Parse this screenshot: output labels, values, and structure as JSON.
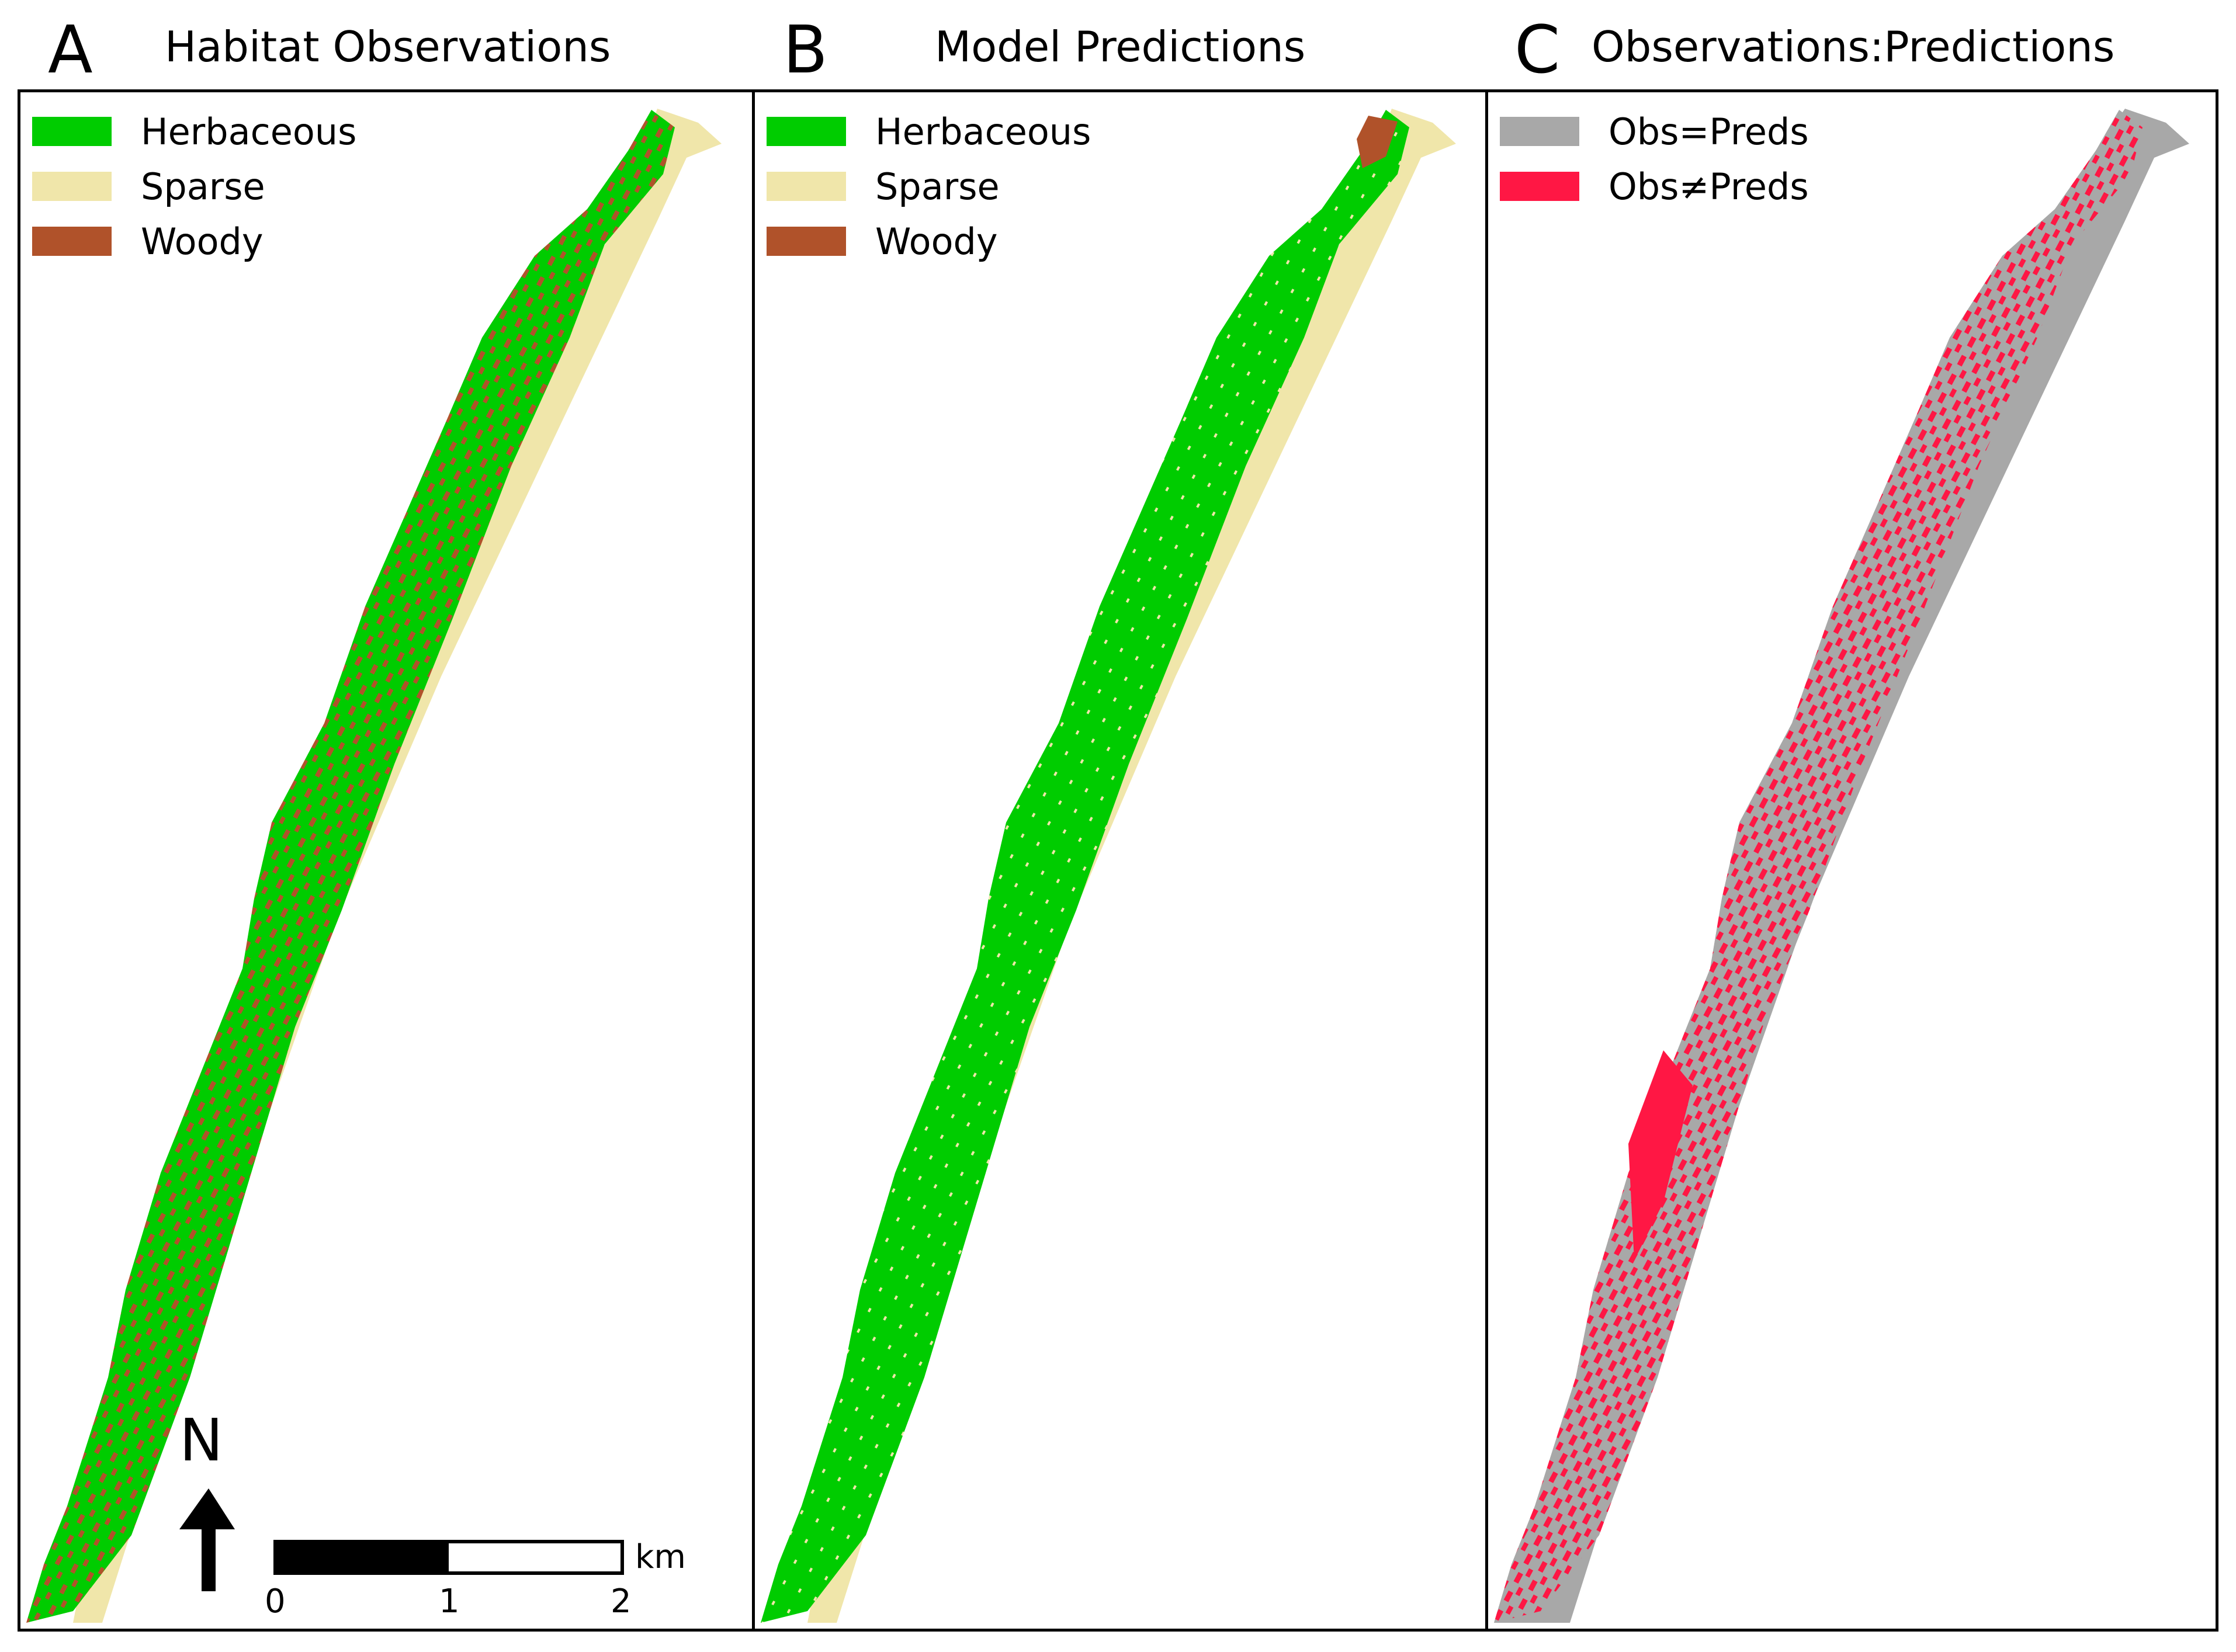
{
  "panels": [
    {
      "letter": "A",
      "title": "Habitat Observations"
    },
    {
      "letter": "B",
      "title": "Model Predictions"
    },
    {
      "letter": "C",
      "title": "Observations:Predictions"
    }
  ],
  "legend_habitat": [
    {
      "label": "Herbaceous",
      "color": "#00cc00"
    },
    {
      "label": "Sparse",
      "color": "#f0e6aa"
    },
    {
      "label": "Woody",
      "color": "#b0522a"
    }
  ],
  "legend_comparison": [
    {
      "label": "Obs=Preds",
      "color": "#a8a8a8"
    },
    {
      "label": "Obs≠Preds",
      "color": "#ff1744"
    }
  ],
  "north_arrow": {
    "label": "N"
  },
  "scale_bar": {
    "ticks": [
      "0",
      "1",
      "2"
    ],
    "unit": "km"
  }
}
